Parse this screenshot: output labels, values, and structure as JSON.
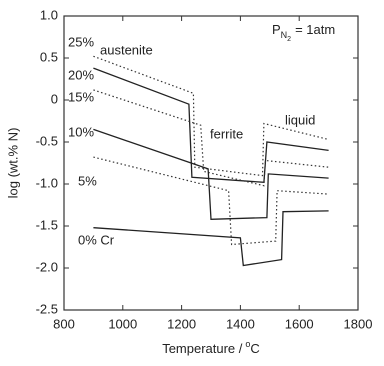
{
  "chart_data": {
    "type": "line",
    "x_label": {
      "text": "Temperature /",
      "superscript": "o",
      "unit": "C"
    },
    "y_label": "log (wt.% N)",
    "pressure_label": {
      "symbol": "P",
      "subscript": "N",
      "sub_subscript": "2",
      "rest": "= 1atm"
    },
    "annotations": [
      "austenite",
      "ferrite",
      "liquid"
    ],
    "xlim": [
      800,
      1800
    ],
    "xticks": [
      800,
      1000,
      1200,
      1400,
      1600,
      1800
    ],
    "ylim": [
      -2.5,
      1.0
    ],
    "yticks": [
      {
        "value": -2.5,
        "label": "-2.5"
      },
      {
        "value": -2,
        "label": "-2.0"
      },
      {
        "value": -1.5,
        "label": "-1.5"
      },
      {
        "value": -1,
        "label": "-1.0"
      },
      {
        "value": -0.5,
        "label": "-0.5"
      },
      0,
      0.5,
      {
        "value": 1,
        "label": "1.0"
      }
    ],
    "series": [
      {
        "name": "25%",
        "color": "#333333",
        "style": "dotted",
        "x": [
          900,
          1240,
          1245,
          1475,
          1480,
          1700
        ],
        "values": [
          0.52,
          0.08,
          -0.8,
          -0.9,
          -0.28,
          -0.47
        ]
      },
      {
        "name": "20%",
        "color": "#222222",
        "style": "solid",
        "x": [
          900,
          1225,
          1235,
          1480,
          1490,
          1700
        ],
        "values": [
          0.38,
          -0.05,
          -0.92,
          -0.98,
          -0.5,
          -0.6
        ]
      },
      {
        "name": "15%",
        "color": "#333333",
        "style": "dotted",
        "x": [
          900,
          1265,
          1275,
          1480,
          1485,
          1700
        ],
        "values": [
          0.12,
          -0.3,
          -0.85,
          -1.02,
          -0.72,
          -0.8
        ]
      },
      {
        "name": "10%",
        "color": "#222222",
        "style": "solid",
        "x": [
          900,
          1290,
          1300,
          1490,
          1495,
          1700
        ],
        "values": [
          -0.35,
          -0.82,
          -1.42,
          -1.4,
          -0.88,
          -0.93
        ]
      },
      {
        "name": "5%",
        "color": "#333333",
        "style": "dotted",
        "x": [
          900,
          1360,
          1370,
          1520,
          1525,
          1700
        ],
        "values": [
          -0.68,
          -1.08,
          -1.72,
          -1.68,
          -1.08,
          -1.12
        ]
      },
      {
        "name": "0% Cr",
        "color": "#222222",
        "style": "solid",
        "x": [
          900,
          1400,
          1410,
          1540,
          1545,
          1700
        ],
        "values": [
          -1.52,
          -1.64,
          -1.97,
          -1.9,
          -1.33,
          -1.32
        ]
      }
    ]
  }
}
